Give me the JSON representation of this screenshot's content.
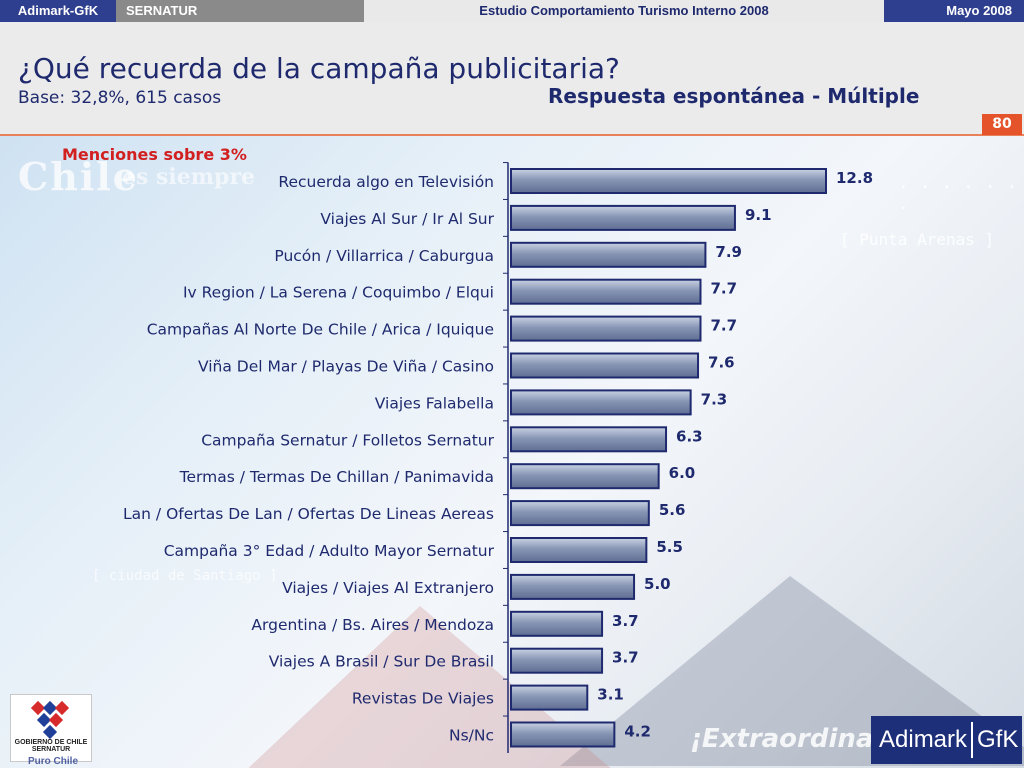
{
  "topbar": {
    "brand": "Adimark-GfK",
    "client": "SERNATUR",
    "study": "Estudio Comportamiento Turismo Interno 2008",
    "date": "Mayo 2008"
  },
  "header": {
    "title": "¿Qué recuerda de la campaña publicitaria?",
    "base": "Base: 32,8%, 615 casos",
    "response_type": "Respuesta espontánea - Múltiple",
    "page_number": "80"
  },
  "background_text": {
    "chile": "Chile",
    "es": "es siempre",
    "punta": "[ Punta Arenas ]",
    "dots": ". . . . . . .",
    "ciudad": "[ ciudad de Santiago ]",
    "extra": "¡Extraordinario"
  },
  "chart_data": {
    "type": "bar",
    "orientation": "horizontal",
    "annotation": "Menciones sobre 3%",
    "categories": [
      "Recuerda algo en Televisión",
      "Viajes Al Sur / Ir Al Sur",
      "Pucón / Villarrica / Caburgua",
      "Iv Region / La Serena / Coquimbo / Elqui",
      "Campañas Al Norte De Chile / Arica / Iquique",
      "Viña Del Mar / Playas De Viña / Casino",
      "Viajes Falabella",
      "Campaña Sernatur / Folletos Sernatur",
      "Termas / Termas De Chillan / Panimavida",
      "Lan / Ofertas De Lan / Ofertas De Lineas Aereas",
      "Campaña 3° Edad / Adulto Mayor Sernatur",
      "Viajes / Viajes Al Extranjero",
      "Argentina / Bs. Aires / Mendoza",
      "Viajes A Brasil / Sur De Brasil",
      "Revistas De Viajes",
      "Ns/Nc"
    ],
    "values": [
      12.8,
      9.1,
      7.9,
      7.7,
      7.7,
      7.6,
      7.3,
      6.3,
      6.0,
      5.6,
      5.5,
      5.0,
      3.7,
      3.7,
      3.1,
      4.2
    ],
    "value_labels": [
      "12.8",
      "9.1",
      "7.9",
      "7.7",
      "7.7",
      "7.6",
      "7.3",
      "6.3",
      "6.0",
      "5.6",
      "5.5",
      "5.0",
      "3.7",
      "3.7",
      "3.1",
      "4.2"
    ],
    "xlim": [
      0,
      12.8
    ],
    "grid": false,
    "colors": {
      "bar": "#7f8fae",
      "bar_border": "#1f2a6e",
      "label": "#1f2a6e"
    }
  },
  "logos": {
    "gov_text": "GOBIERNO DE CHILE",
    "gov_sub": "SERNATUR",
    "puro_chile": "Puro Chile",
    "adimark_word": "Adimark",
    "gfk_word": "GfK"
  }
}
